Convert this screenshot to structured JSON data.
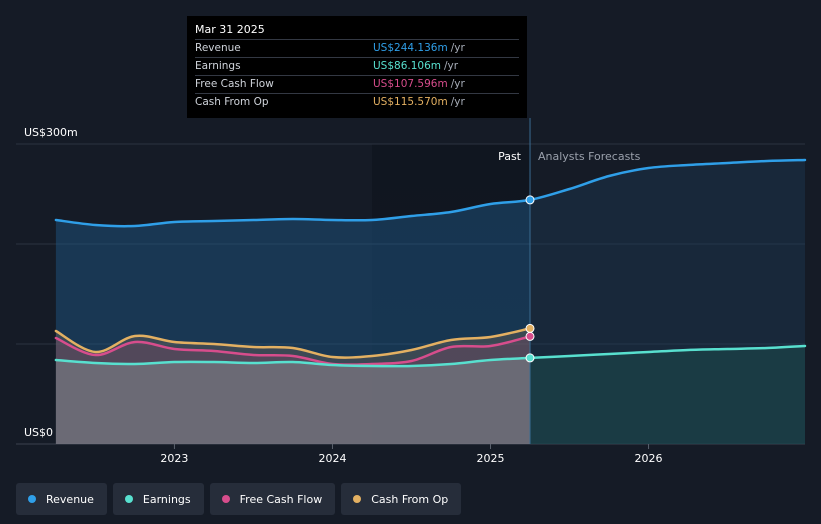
{
  "chart_data": {
    "type": "area",
    "y_label_top": "US$300m",
    "y_label_bottom": "US$0",
    "ylim": [
      0,
      300
    ],
    "x_ticks": [
      {
        "label": "2023",
        "t": 2023.0
      },
      {
        "label": "2024",
        "t": 2024.0
      },
      {
        "label": "2025",
        "t": 2025.0
      },
      {
        "label": "2026",
        "t": 2026.0
      }
    ],
    "x_range": [
      2022.2,
      2026.99
    ],
    "past_label": "Past",
    "forecast_label": "Analysts Forecasts",
    "divider_t": 2025.25,
    "highlight_start_t": 2024.25,
    "series": [
      {
        "name": "Revenue",
        "color": "#2f9fe8",
        "past": [
          [
            2022.25,
            224
          ],
          [
            2022.5,
            219
          ],
          [
            2022.75,
            218
          ],
          [
            2023.0,
            222
          ],
          [
            2023.25,
            223
          ],
          [
            2023.5,
            224
          ],
          [
            2023.75,
            225
          ],
          [
            2024.0,
            224
          ],
          [
            2024.25,
            224
          ],
          [
            2024.5,
            228
          ],
          [
            2024.75,
            232
          ],
          [
            2025.0,
            240
          ],
          [
            2025.25,
            244.1
          ]
        ],
        "forecast": [
          [
            2025.25,
            244.1
          ],
          [
            2025.5,
            255
          ],
          [
            2025.75,
            268
          ],
          [
            2026.0,
            276
          ],
          [
            2026.25,
            279
          ],
          [
            2026.5,
            281
          ],
          [
            2026.75,
            283
          ],
          [
            2026.99,
            284
          ]
        ]
      },
      {
        "name": "Earnings",
        "color": "#58e0cf",
        "past": [
          [
            2022.25,
            84
          ],
          [
            2022.5,
            81
          ],
          [
            2022.75,
            80
          ],
          [
            2023.0,
            82
          ],
          [
            2023.25,
            82
          ],
          [
            2023.5,
            81
          ],
          [
            2023.75,
            82
          ],
          [
            2024.0,
            79
          ],
          [
            2024.25,
            78
          ],
          [
            2024.5,
            78
          ],
          [
            2024.75,
            80
          ],
          [
            2025.0,
            84
          ],
          [
            2025.25,
            86.1
          ]
        ],
        "forecast": [
          [
            2025.25,
            86.1
          ],
          [
            2025.5,
            88
          ],
          [
            2025.75,
            90
          ],
          [
            2026.0,
            92
          ],
          [
            2026.25,
            94
          ],
          [
            2026.5,
            95
          ],
          [
            2026.75,
            96
          ],
          [
            2026.99,
            98
          ]
        ]
      },
      {
        "name": "Free Cash Flow",
        "color": "#d74d8c",
        "past": [
          [
            2022.25,
            106
          ],
          [
            2022.5,
            89
          ],
          [
            2022.75,
            102
          ],
          [
            2023.0,
            95
          ],
          [
            2023.25,
            93
          ],
          [
            2023.5,
            89
          ],
          [
            2023.75,
            88
          ],
          [
            2024.0,
            80
          ],
          [
            2024.25,
            80
          ],
          [
            2024.5,
            83
          ],
          [
            2024.75,
            97
          ],
          [
            2025.0,
            98
          ],
          [
            2025.25,
            107.6
          ]
        ],
        "forecast": []
      },
      {
        "name": "Cash From Op",
        "color": "#e3b062",
        "past": [
          [
            2022.25,
            113
          ],
          [
            2022.5,
            92
          ],
          [
            2022.75,
            108
          ],
          [
            2023.0,
            102
          ],
          [
            2023.25,
            100
          ],
          [
            2023.5,
            97
          ],
          [
            2023.75,
            96
          ],
          [
            2024.0,
            87
          ],
          [
            2024.25,
            88
          ],
          [
            2024.5,
            94
          ],
          [
            2024.75,
            104
          ],
          [
            2025.0,
            107
          ],
          [
            2025.25,
            115.6
          ]
        ],
        "forecast": []
      }
    ]
  },
  "tooltip": {
    "date": "Mar 31 2025",
    "unit": "/yr",
    "rows": [
      {
        "label": "Revenue",
        "value": "US$244.136m",
        "color": "#2f9fe8"
      },
      {
        "label": "Earnings",
        "value": "US$86.106m",
        "color": "#58e0cf"
      },
      {
        "label": "Free Cash Flow",
        "value": "US$107.596m",
        "color": "#d74d8c"
      },
      {
        "label": "Cash From Op",
        "value": "US$115.570m",
        "color": "#e3b062"
      }
    ]
  },
  "legend": [
    {
      "label": "Revenue",
      "color": "#2f9fe8"
    },
    {
      "label": "Earnings",
      "color": "#58e0cf"
    },
    {
      "label": "Free Cash Flow",
      "color": "#d74d8c"
    },
    {
      "label": "Cash From Op",
      "color": "#e3b062"
    }
  ]
}
